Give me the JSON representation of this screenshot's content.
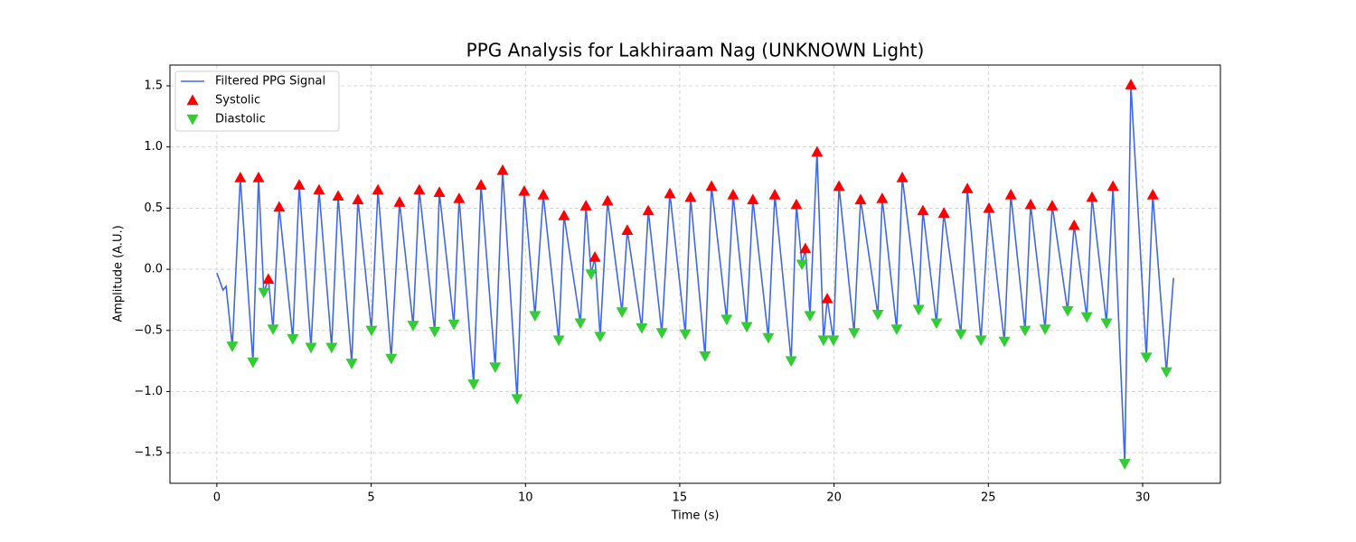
{
  "chart_data": {
    "type": "line",
    "title": "PPG Analysis for Lakhiraam Nag (UNKNOWN Light)",
    "xlabel": "Time (s)",
    "ylabel": "Amplitude (A.U.)",
    "xlim": [
      -1.52,
      32.52
    ],
    "ylim": [
      -1.75,
      1.67
    ],
    "xticks": [
      0,
      5,
      10,
      15,
      20,
      25,
      30
    ],
    "yticks": [
      {
        "value": -1.5,
        "label": "−1.5"
      },
      {
        "value": -1,
        "label": "−1.0"
      },
      {
        "value": -0.5,
        "label": "−0.5"
      },
      {
        "value": 0,
        "label": "0.0"
      },
      0.5,
      {
        "value": 1,
        "label": "1.0"
      },
      1.5
    ],
    "grid": true,
    "legend": "upper left",
    "series": [
      {
        "name": "Filtered PPG Signal",
        "color": "#4169e1",
        "style": "line",
        "x": [
          0,
          0.2,
          0.3,
          0.5,
          0.76,
          1.17,
          1.35,
          1.52,
          1.67,
          1.82,
          2.02,
          2.46,
          2.67,
          3.05,
          3.31,
          3.72,
          3.93,
          4.37,
          4.57,
          5.01,
          5.22,
          5.65,
          5.92,
          6.36,
          6.56,
          7.06,
          7.21,
          7.68,
          7.85,
          8.32,
          8.56,
          9.02,
          9.26,
          9.73,
          9.96,
          10.31,
          10.58,
          11.08,
          11.25,
          11.78,
          11.96,
          12.13,
          12.25,
          12.42,
          12.66,
          13.13,
          13.3,
          13.77,
          13.98,
          14.42,
          14.68,
          15.18,
          15.35,
          15.82,
          16.03,
          16.52,
          16.73,
          17.17,
          17.37,
          17.87,
          18.08,
          18.61,
          18.78,
          18.96,
          19.07,
          19.22,
          19.45,
          19.66,
          19.78,
          19.98,
          20.16,
          20.65,
          20.86,
          21.42,
          21.56,
          22.03,
          22.21,
          22.74,
          22.88,
          23.32,
          23.56,
          24.11,
          24.32,
          24.76,
          25.02,
          25.52,
          25.73,
          26.19,
          26.37,
          26.84,
          27.07,
          27.57,
          27.78,
          28.19,
          28.36,
          28.83,
          29.04,
          29.42,
          29.62,
          30.12,
          30.33,
          30.77,
          31
        ],
        "values": [
          -0.03,
          -0.17,
          -0.14,
          -0.63,
          0.75,
          -0.76,
          0.75,
          -0.19,
          -0.08,
          -0.49,
          0.51,
          -0.57,
          0.69,
          -0.64,
          0.65,
          -0.64,
          0.6,
          -0.77,
          0.57,
          -0.5,
          0.65,
          -0.73,
          0.55,
          -0.46,
          0.65,
          -0.51,
          0.63,
          -0.45,
          0.58,
          -0.94,
          0.69,
          -0.8,
          0.81,
          -1.06,
          0.64,
          -0.38,
          0.61,
          -0.58,
          0.44,
          -0.44,
          0.52,
          -0.04,
          0.1,
          -0.55,
          0.56,
          -0.35,
          0.32,
          -0.48,
          0.48,
          -0.52,
          0.62,
          -0.53,
          0.59,
          -0.71,
          0.68,
          -0.41,
          0.61,
          -0.47,
          0.57,
          -0.56,
          0.61,
          -0.75,
          0.53,
          0.04,
          0.17,
          -0.38,
          0.96,
          -0.58,
          -0.24,
          -0.58,
          0.68,
          -0.52,
          0.57,
          -0.37,
          0.58,
          -0.49,
          0.75,
          -0.33,
          0.48,
          -0.44,
          0.46,
          -0.53,
          0.66,
          -0.58,
          0.5,
          -0.59,
          0.61,
          -0.5,
          0.53,
          -0.49,
          0.52,
          -0.34,
          0.36,
          -0.39,
          0.59,
          -0.44,
          0.68,
          -1.59,
          1.51,
          -0.72,
          0.61,
          -0.84,
          -0.07
        ]
      },
      {
        "name": "Systolic",
        "color": "#ff0000",
        "style": "triangle-up",
        "x": [
          0.76,
          1.35,
          1.67,
          2.02,
          2.67,
          3.31,
          3.93,
          4.57,
          5.22,
          5.92,
          6.56,
          7.21,
          7.85,
          8.56,
          9.26,
          9.96,
          10.58,
          11.25,
          11.96,
          12.25,
          12.66,
          13.3,
          13.98,
          14.68,
          15.35,
          16.03,
          16.73,
          17.37,
          18.08,
          18.78,
          19.07,
          19.45,
          19.78,
          20.16,
          20.86,
          21.56,
          22.21,
          22.88,
          23.56,
          24.32,
          25.02,
          25.73,
          26.37,
          27.07,
          27.78,
          28.36,
          29.04,
          29.62,
          30.33
        ],
        "values": [
          0.75,
          0.75,
          -0.08,
          0.51,
          0.69,
          0.65,
          0.6,
          0.57,
          0.65,
          0.55,
          0.65,
          0.63,
          0.58,
          0.69,
          0.81,
          0.64,
          0.61,
          0.44,
          0.52,
          0.1,
          0.56,
          0.32,
          0.48,
          0.62,
          0.59,
          0.68,
          0.61,
          0.57,
          0.61,
          0.53,
          0.17,
          0.96,
          -0.24,
          0.68,
          0.57,
          0.58,
          0.75,
          0.48,
          0.46,
          0.66,
          0.5,
          0.61,
          0.53,
          0.52,
          0.36,
          0.59,
          0.68,
          1.51,
          0.61
        ]
      },
      {
        "name": "Diastolic",
        "color": "#32cd32",
        "style": "triangle-down",
        "x": [
          0.5,
          1.17,
          1.52,
          1.82,
          2.46,
          3.05,
          3.72,
          4.37,
          5.01,
          5.65,
          6.36,
          7.06,
          7.68,
          8.32,
          9.02,
          9.73,
          10.31,
          11.08,
          11.78,
          12.13,
          12.42,
          13.13,
          13.77,
          14.42,
          15.18,
          15.82,
          16.52,
          17.17,
          17.87,
          18.61,
          18.96,
          19.22,
          19.66,
          19.98,
          20.65,
          21.42,
          22.03,
          22.74,
          23.32,
          24.11,
          24.76,
          25.52,
          26.19,
          26.84,
          27.57,
          28.19,
          28.83,
          29.42,
          30.12,
          30.77
        ],
        "values": [
          -0.63,
          -0.76,
          -0.19,
          -0.49,
          -0.57,
          -0.64,
          -0.64,
          -0.77,
          -0.5,
          -0.73,
          -0.46,
          -0.51,
          -0.45,
          -0.94,
          -0.8,
          -1.06,
          -0.38,
          -0.58,
          -0.44,
          -0.04,
          -0.55,
          -0.35,
          -0.48,
          -0.52,
          -0.53,
          -0.71,
          -0.41,
          -0.47,
          -0.56,
          -0.75,
          0.04,
          -0.38,
          -0.58,
          -0.58,
          -0.52,
          -0.37,
          -0.49,
          -0.33,
          -0.44,
          -0.53,
          -0.58,
          -0.59,
          -0.5,
          -0.49,
          -0.34,
          -0.39,
          -0.44,
          -1.59,
          -0.72,
          -0.84
        ]
      }
    ]
  }
}
